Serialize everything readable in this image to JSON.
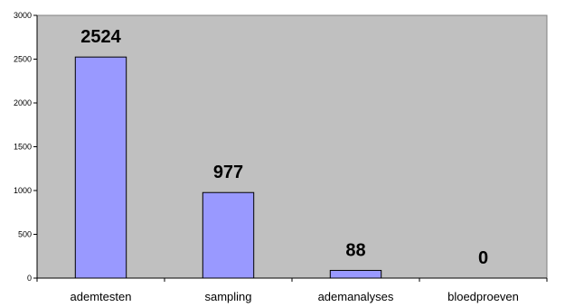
{
  "chart_data": {
    "type": "bar",
    "categories": [
      "ademtesten",
      "sampling",
      "ademanalyses",
      "bloedproeven"
    ],
    "values": [
      2524,
      977,
      88,
      0
    ],
    "data_labels": [
      "2524",
      "977",
      "88",
      "0"
    ],
    "title": "",
    "xlabel": "",
    "ylabel": "",
    "ylim": [
      0,
      3000
    ],
    "yticks": [
      0,
      500,
      1000,
      1500,
      2000,
      2500,
      3000
    ],
    "ytick_labels": [
      "0",
      "500",
      "1000",
      "1500",
      "2000",
      "2500",
      "3000"
    ],
    "grid": false,
    "legend": "none",
    "colors": {
      "plot_background": "#c0c0c0",
      "bar_fill": "#9999ff",
      "bar_stroke": "#000000",
      "axis": "#000000"
    }
  }
}
